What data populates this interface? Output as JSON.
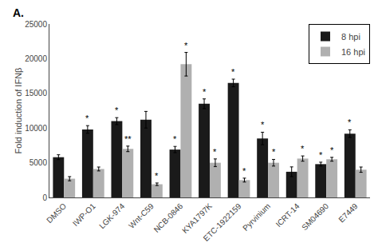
{
  "chart_data": {
    "type": "bar",
    "categories": [
      "DMSO",
      "IWP-O1",
      "LGK-974",
      "Wnt-C59",
      "NCB-0846",
      "KYA1797K",
      "ETC-1922159",
      "Pyrvinium",
      "ICRT-14",
      "SM04690",
      "E7449"
    ],
    "series": [
      {
        "name": "8 hpi",
        "color": "#1a1a1a",
        "values": [
          5800,
          9800,
          11000,
          11200,
          6900,
          13500,
          16500,
          8500,
          3700,
          4800,
          9200
        ],
        "errors": [
          350,
          550,
          500,
          1200,
          450,
          700,
          550,
          900,
          700,
          280,
          550
        ],
        "significance": [
          null,
          "*",
          "*",
          null,
          "*",
          "*",
          "*",
          "*",
          null,
          "*",
          "*"
        ]
      },
      {
        "name": "16 hpi",
        "color": "#b0b0b0",
        "values": [
          2700,
          4100,
          7000,
          1900,
          19200,
          5000,
          2500,
          5000,
          5600,
          5500,
          4000
        ],
        "errors": [
          300,
          280,
          400,
          180,
          1700,
          550,
          280,
          480,
          380,
          280,
          380
        ],
        "significance": [
          null,
          null,
          "**",
          "*",
          "*",
          "*",
          "*",
          "*",
          "*",
          "*",
          null
        ]
      }
    ],
    "ylabel": "Fold induction of IFNβ",
    "ylim": [
      0,
      25000
    ],
    "yticks": [
      0,
      5000,
      10000,
      15000,
      20000,
      25000
    ],
    "panel_label": "A.",
    "legend": "upper right",
    "grid": false
  }
}
